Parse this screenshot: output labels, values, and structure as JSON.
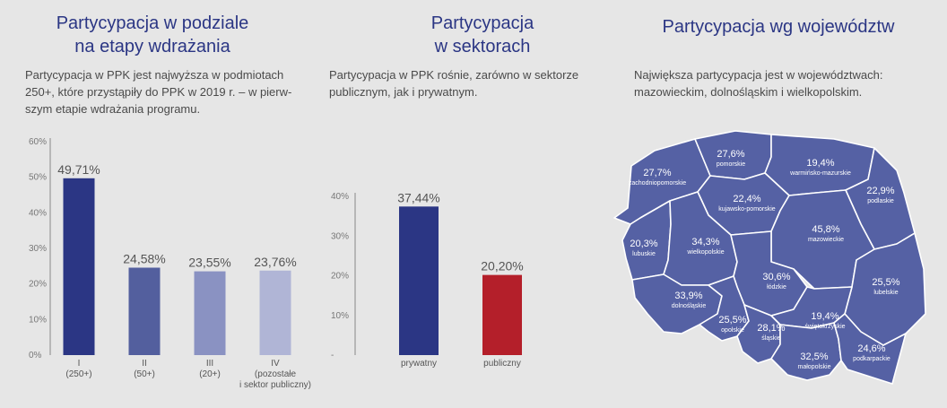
{
  "panels": [
    {
      "title_lines": [
        "Partycypacja w podziale",
        "na etapy wdrażania"
      ],
      "desc_lines": [
        "Partycypacja w PPK jest najwyższa w podmiotach",
        "250+, które przystąpiły do PPK w 2019 r. – w pierw-",
        "szym etapie wdrażania programu."
      ]
    },
    {
      "title_lines": [
        "Partycypacja",
        "w sektorach"
      ],
      "desc_lines": [
        "Partycypacja w PPK rośnie, zarówno w sektorze",
        "publicznym, jak i prywatnym."
      ]
    },
    {
      "title_lines": [
        "Partycypacja wg województw"
      ],
      "desc_lines": [
        "Największa partycypacja jest w województwach:",
        "mazowieckim, dolnośląskim i wielkopolskim."
      ]
    }
  ],
  "chart_data": [
    {
      "type": "bar",
      "categories": [
        [
          "I",
          "(250+)"
        ],
        [
          "II",
          "(50+)"
        ],
        [
          "III",
          "(20+)"
        ],
        [
          "IV",
          "(pozostałe",
          "i sektor publiczny)"
        ]
      ],
      "values": [
        49.71,
        24.58,
        23.55,
        23.76
      ],
      "value_labels": [
        "49,71%",
        "24,58%",
        "23,55%",
        "23,76%"
      ],
      "colors": [
        "#2b3684",
        "#535f9e",
        "#8a92c2",
        "#b0b5d6"
      ],
      "ylim": [
        0,
        60
      ],
      "yticks": [
        0,
        10,
        20,
        30,
        40,
        50,
        60
      ],
      "ytick_labels": [
        "0%",
        "10%",
        "20%",
        "30%",
        "40%",
        "50%",
        "60%"
      ],
      "grid": false
    },
    {
      "type": "bar",
      "categories": [
        [
          "prywatny"
        ],
        [
          "publiczny"
        ]
      ],
      "values": [
        37.44,
        20.2
      ],
      "value_labels": [
        "37,44%",
        "20,20%"
      ],
      "colors": [
        "#2b3684",
        "#b41f2a"
      ],
      "ylim": [
        0,
        40
      ],
      "yticks": [
        0,
        10,
        20,
        30,
        40
      ],
      "ytick_labels": [
        "-",
        "10%",
        "20%",
        "30%",
        "40%"
      ],
      "grid": false
    },
    {
      "type": "map",
      "fill_color": "#5561a4",
      "border_color": "#ffffff",
      "regions": [
        {
          "name": "zachodniopomorskie",
          "value": "27,7%"
        },
        {
          "name": "pomorskie",
          "value": "27,6%"
        },
        {
          "name": "warmińsko-mazurskie",
          "value": "19,4%"
        },
        {
          "name": "podlaskie",
          "value": "22,9%"
        },
        {
          "name": "kujawsko-pomorskie",
          "value": "22,4%"
        },
        {
          "name": "mazowieckie",
          "value": "45,8%"
        },
        {
          "name": "lubuskie",
          "value": "20,3%"
        },
        {
          "name": "wielkopolskie",
          "value": "34,3%"
        },
        {
          "name": "łódzkie",
          "value": "30,6%"
        },
        {
          "name": "lubelskie",
          "value": "25,5%"
        },
        {
          "name": "dolnośląskie",
          "value": "33,9%"
        },
        {
          "name": "opolskie",
          "value": "25,5%"
        },
        {
          "name": "śląskie",
          "value": "28,1%"
        },
        {
          "name": "świętokrzyskie",
          "value": "19,4%"
        },
        {
          "name": "małopolskie",
          "value": "32,5%"
        },
        {
          "name": "podkarpackie",
          "value": "24,6%"
        }
      ]
    }
  ]
}
